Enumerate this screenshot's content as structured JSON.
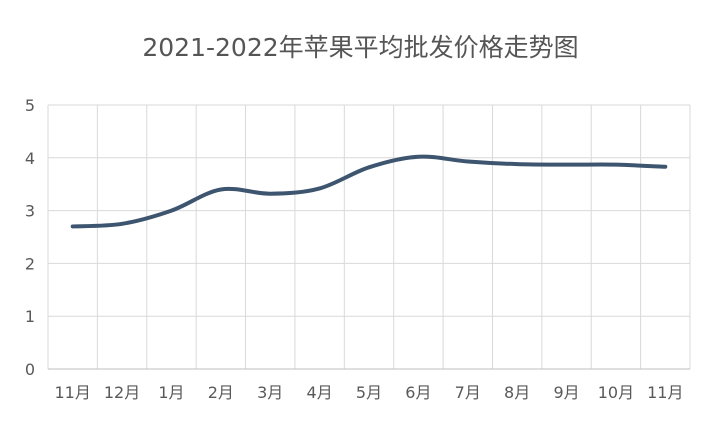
{
  "chart_data": {
    "type": "line",
    "title": "2021-2022年苹果平均批发价格走势图",
    "categories": [
      "11月",
      "12月",
      "1月",
      "2月",
      "3月",
      "4月",
      "5月",
      "6月",
      "7月",
      "8月",
      "9月",
      "10月",
      "11月"
    ],
    "series": [
      {
        "values": [
          2.7,
          2.75,
          3.0,
          3.4,
          3.32,
          3.42,
          3.82,
          4.02,
          3.93,
          3.88,
          3.87,
          3.87,
          3.83
        ],
        "color": "#3d556f"
      }
    ],
    "ylim": [
      0,
      5
    ],
    "yticks": [
      "0",
      "1",
      "2",
      "3",
      "4",
      "5"
    ],
    "grid": true,
    "legend": "none"
  }
}
